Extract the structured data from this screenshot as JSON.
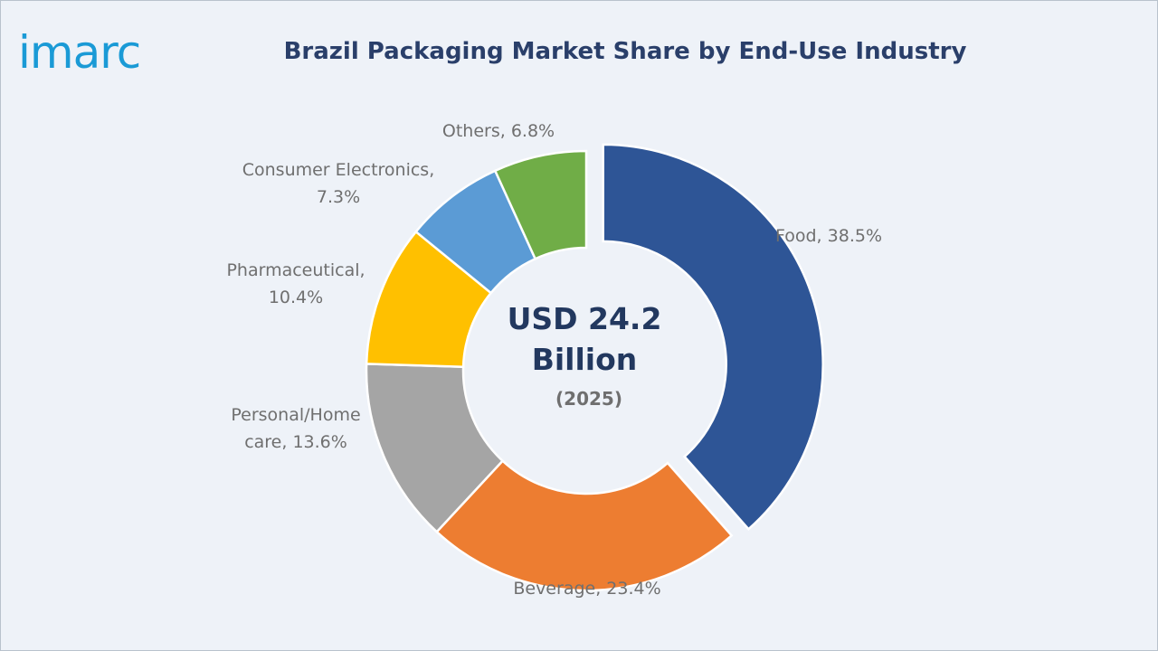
{
  "logo": {
    "text": "imarc"
  },
  "chart_data": {
    "type": "pie",
    "style": "donut",
    "title": "Brazil Packaging Market Share by End-Use Industry",
    "unit": "%",
    "center": {
      "line1": "USD 24.2",
      "line2": "Billion",
      "line3": "(2025)"
    },
    "slices": [
      {
        "name": "Food",
        "value": 38.5,
        "color": "#2e5596",
        "label": [
          "Food, 38.5%"
        ],
        "exploded": true
      },
      {
        "name": "Beverage",
        "value": 23.4,
        "color": "#ed7d31",
        "label": [
          "Beverage, 23.4%"
        ]
      },
      {
        "name": "Personal/Home care",
        "value": 13.6,
        "color": "#a5a5a5",
        "label": [
          "Personal/Home",
          "care, 13.6%"
        ]
      },
      {
        "name": "Pharmaceutical",
        "value": 10.4,
        "color": "#ffc000",
        "label": [
          "Pharmaceutical,",
          "10.4%"
        ]
      },
      {
        "name": "Consumer Electronics",
        "value": 7.3,
        "color": "#5b9bd5",
        "label": [
          "Consumer Electronics,",
          "7.3%"
        ]
      },
      {
        "name": "Others",
        "value": 6.8,
        "color": "#70ad47",
        "label": [
          "Others, 6.8%"
        ]
      }
    ]
  }
}
